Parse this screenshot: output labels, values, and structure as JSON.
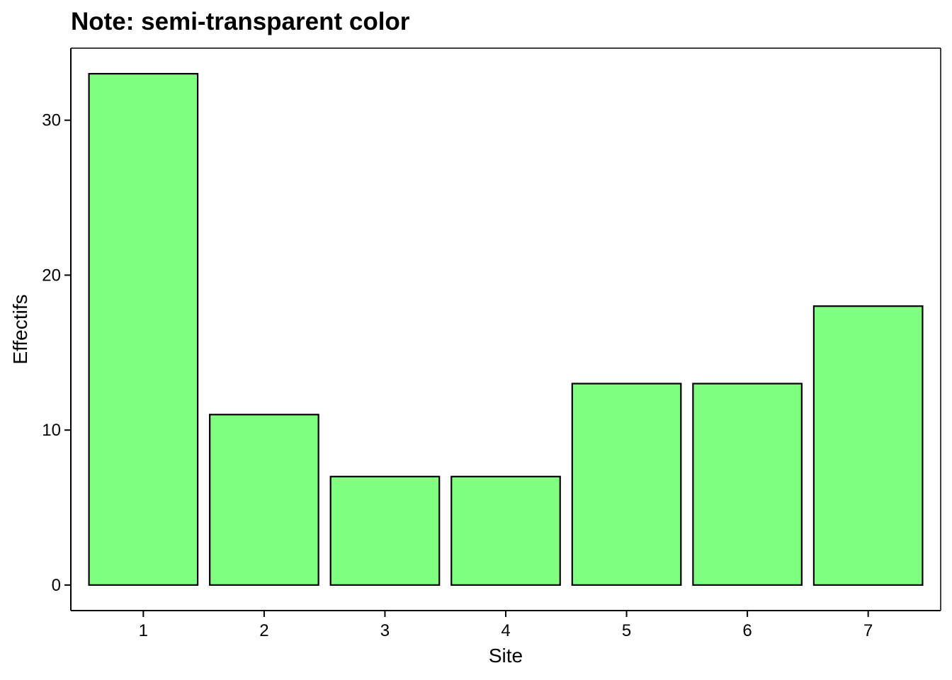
{
  "chart_data": {
    "type": "bar",
    "title": "Note: semi-transparent color",
    "xlabel": "Site",
    "ylabel": "Effectifs",
    "categories": [
      "1",
      "2",
      "3",
      "4",
      "5",
      "6",
      "7"
    ],
    "values": [
      33,
      11,
      7,
      7,
      13,
      13,
      18
    ],
    "ylim": [
      -1.65,
      34.65
    ],
    "yticks": [
      0,
      10,
      20,
      30
    ],
    "ytick_labels": [
      "0",
      "10",
      "20",
      "30"
    ],
    "bar_fill": "#80ff80",
    "bar_stroke": "#000000",
    "grid": false,
    "legend": "none"
  }
}
